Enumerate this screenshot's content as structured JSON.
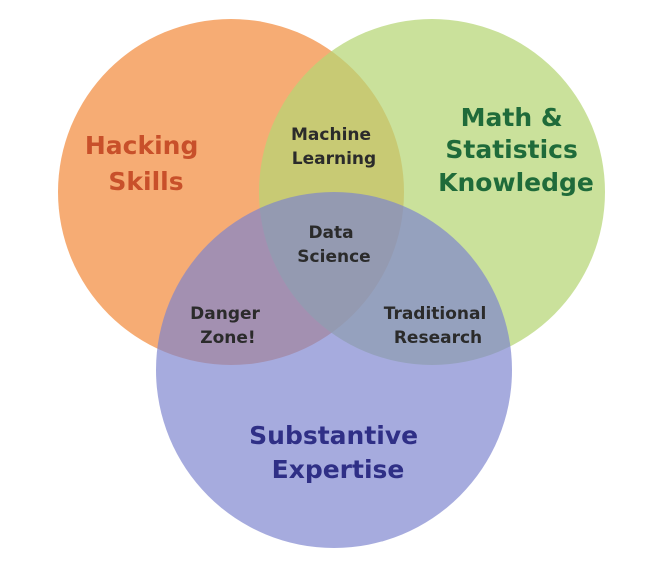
{
  "diagram": {
    "sets": {
      "hacking": {
        "lines": [
          "Hacking",
          "Skills"
        ],
        "fill_color": "#f59d5c",
        "label_color": "#c8502a"
      },
      "math": {
        "lines": [
          "Math &",
          "Statistics",
          "Knowledge"
        ],
        "fill_color": "#b6d675",
        "label_color": "#1f6b3a"
      },
      "substantive": {
        "lines": [
          "Substantive",
          "Expertise"
        ],
        "fill_color": "#7c83cf",
        "label_color": "#2f2f86"
      }
    },
    "intersections": {
      "machine_learning": [
        "Machine",
        "Learning"
      ],
      "data_science": [
        "Data",
        "Science"
      ],
      "danger_zone": [
        "Danger",
        "Zone!"
      ],
      "traditional_research": [
        "Traditional",
        "Research"
      ]
    }
  }
}
